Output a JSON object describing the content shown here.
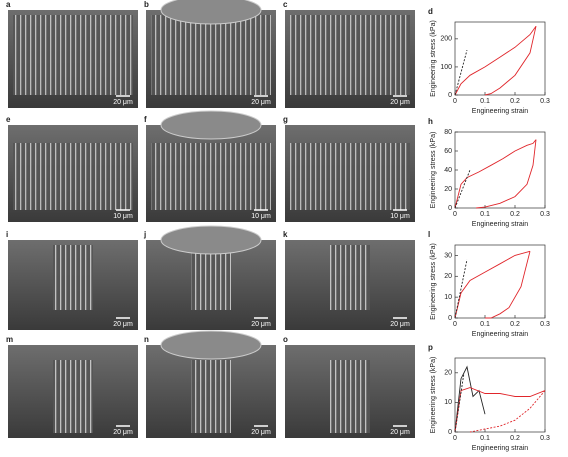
{
  "panels": [
    {
      "label": "a",
      "scale": "20 μm"
    },
    {
      "label": "b",
      "scale": "20 μm"
    },
    {
      "label": "c",
      "scale": "20 μm"
    },
    {
      "label": "e",
      "scale": "10 μm"
    },
    {
      "label": "f",
      "scale": "10 μm"
    },
    {
      "label": "g",
      "scale": "10 μm"
    },
    {
      "label": "i",
      "scale": "20 μm"
    },
    {
      "label": "j",
      "scale": "20 μm"
    },
    {
      "label": "k",
      "scale": "20 μm"
    },
    {
      "label": "m",
      "scale": "20 μm"
    },
    {
      "label": "n",
      "scale": "20 μm"
    },
    {
      "label": "o",
      "scale": "20 μm"
    }
  ],
  "chart_data": [
    {
      "type": "line",
      "label": "d",
      "xlabel": "Engineering strain",
      "ylabel": "Engineering stress (kPa)",
      "xlim": [
        0,
        0.3
      ],
      "xticks": [
        0,
        0.1,
        0.2,
        0.3
      ],
      "ylim": [
        0,
        260
      ],
      "yticks": [
        0,
        100,
        200
      ],
      "series": [
        {
          "color": "#e0262b",
          "x": [
            0,
            0.02,
            0.05,
            0.1,
            0.15,
            0.2,
            0.25,
            0.27
          ],
          "values": [
            0,
            40,
            70,
            100,
            135,
            170,
            215,
            245
          ]
        },
        {
          "color": "#e0262b",
          "x": [
            0.27,
            0.25,
            0.2,
            0.15,
            0.12,
            0.1
          ],
          "values": [
            245,
            150,
            70,
            25,
            5,
            0
          ]
        },
        {
          "color": "#222222",
          "dashed": true,
          "x": [
            0,
            0.04
          ],
          "values": [
            0,
            160
          ]
        }
      ]
    },
    {
      "type": "line",
      "label": "h",
      "xlabel": "Engineering strain",
      "ylabel": "Engineering stress (kPa)",
      "xlim": [
        0,
        0.3
      ],
      "xticks": [
        0,
        0.1,
        0.2,
        0.3
      ],
      "ylim": [
        0,
        80
      ],
      "yticks": [
        0,
        20,
        40,
        60,
        80
      ],
      "series": [
        {
          "color": "#e0262b",
          "x": [
            0,
            0.02,
            0.04,
            0.08,
            0.12,
            0.16,
            0.2,
            0.24,
            0.26,
            0.27
          ],
          "values": [
            0,
            25,
            32,
            38,
            45,
            52,
            60,
            66,
            68,
            72
          ]
        },
        {
          "color": "#e0262b",
          "x": [
            0.27,
            0.26,
            0.24,
            0.2,
            0.15,
            0.1,
            0.07
          ],
          "values": [
            72,
            45,
            25,
            12,
            5,
            1,
            0
          ]
        },
        {
          "color": "#222222",
          "dashed": true,
          "x": [
            0,
            0.05
          ],
          "values": [
            0,
            40
          ]
        }
      ]
    },
    {
      "type": "line",
      "label": "l",
      "xlabel": "Engineering strain",
      "ylabel": "Engineering stress (kPa)",
      "xlim": [
        0,
        0.3
      ],
      "xticks": [
        0,
        0.1,
        0.2,
        0.3
      ],
      "ylim": [
        0,
        35
      ],
      "yticks": [
        0,
        10,
        20,
        30
      ],
      "series": [
        {
          "color": "#e0262b",
          "x": [
            0,
            0.02,
            0.05,
            0.1,
            0.15,
            0.2,
            0.25
          ],
          "values": [
            0,
            12,
            18,
            22,
            26,
            30,
            32
          ]
        },
        {
          "color": "#e0262b",
          "x": [
            0.25,
            0.22,
            0.18,
            0.15,
            0.12,
            0.1
          ],
          "values": [
            32,
            15,
            5,
            2,
            0,
            0
          ]
        },
        {
          "color": "#222222",
          "dashed": true,
          "x": [
            0,
            0.04
          ],
          "values": [
            0,
            28
          ]
        }
      ]
    },
    {
      "type": "line",
      "label": "p",
      "xlabel": "Engineering strain",
      "ylabel": "Engineering stress (kPa)",
      "xlim": [
        0,
        0.3
      ],
      "xticks": [
        0,
        0.1,
        0.2,
        0.3
      ],
      "ylim": [
        0,
        25
      ],
      "yticks": [
        0,
        10,
        20
      ],
      "series": [
        {
          "color": "#222222",
          "x": [
            0,
            0.02,
            0.04,
            0.06,
            0.08,
            0.1
          ],
          "values": [
            0,
            18,
            22,
            12,
            14,
            6
          ]
        },
        {
          "color": "#e0262b",
          "x": [
            0,
            0.02,
            0.05,
            0.1,
            0.15,
            0.2,
            0.25,
            0.3
          ],
          "values": [
            0,
            14,
            15,
            13,
            13,
            12,
            12,
            14
          ]
        },
        {
          "color": "#e0262b",
          "dashed": true,
          "x": [
            0.3,
            0.25,
            0.2,
            0.15,
            0.1,
            0.05
          ],
          "values": [
            14,
            8,
            4,
            2,
            1,
            0
          ]
        },
        {
          "color": "#222222",
          "dashed": true,
          "x": [
            0,
            0.03
          ],
          "values": [
            0,
            20
          ]
        }
      ]
    }
  ]
}
